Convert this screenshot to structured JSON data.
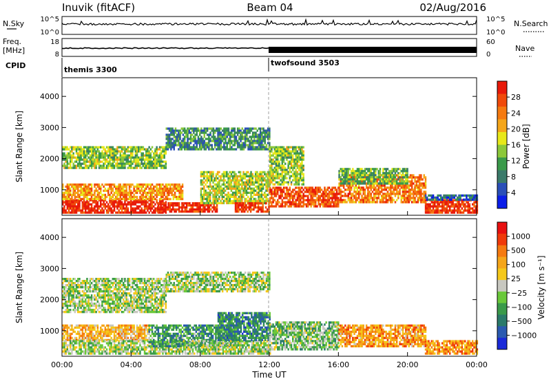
{
  "header": {
    "station": "Inuvik (fitACF)",
    "beam": "Beam 04",
    "date": "02/Aug/2016"
  },
  "panels": {
    "nsky": {
      "label": "N.Sky",
      "ticks": [
        "10^5",
        "10^0"
      ],
      "right_ticks": [
        "10^5",
        "10^0"
      ],
      "right_label": "N.Search"
    },
    "freq": {
      "label_line1": "Freq.",
      "label_line2": "[MHz]",
      "ticks": [
        "18",
        "8"
      ],
      "right_ticks": [
        "60",
        "0"
      ],
      "right_label": "Nave"
    },
    "cpid": {
      "label": "CPID",
      "segments": [
        {
          "name": "themis 3300",
          "start_hour": 0
        },
        {
          "name": "twofsound 3503",
          "start_hour": 12
        }
      ]
    }
  },
  "chart_data": [
    {
      "type": "heatmap",
      "quantity": "Power",
      "ylabel": "Slant Range [km]",
      "ylim": [
        180,
        4600
      ],
      "yticks": [
        "1000",
        "2000",
        "3000",
        "4000"
      ],
      "xlim_hours": [
        0,
        24
      ],
      "colorbar": {
        "label": "Power [dB]",
        "ticks": [
          "4",
          "8",
          "12",
          "16",
          "20",
          "24",
          "28"
        ],
        "colors": [
          "#0b1ee8",
          "#2a4fb8",
          "#3a7a6a",
          "#3a9a4a",
          "#8cc83a",
          "#e8e81a",
          "#f5a61a",
          "#f57a10",
          "#f04a0a",
          "#e81a0a"
        ]
      },
      "bands": [
        {
          "x_start": 0,
          "x_end": 6,
          "y_min": 300,
          "y_max": 700,
          "level": 0.95
        },
        {
          "x_start": 0,
          "x_end": 7,
          "y_min": 700,
          "y_max": 1200,
          "level": 0.7
        },
        {
          "x_start": 0,
          "x_end": 6,
          "y_min": 1700,
          "y_max": 2400,
          "level": 0.45
        },
        {
          "x_start": 5.5,
          "x_end": 9,
          "y_min": 300,
          "y_max": 600,
          "level": 0.95
        },
        {
          "x_start": 6,
          "x_end": 12,
          "y_min": 2300,
          "y_max": 3000,
          "level": 0.3
        },
        {
          "x_start": 8,
          "x_end": 12,
          "y_min": 600,
          "y_max": 1600,
          "level": 0.5
        },
        {
          "x_start": 10,
          "x_end": 12,
          "y_min": 300,
          "y_max": 600,
          "level": 0.9
        },
        {
          "x_start": 12,
          "x_end": 16,
          "y_min": 500,
          "y_max": 1100,
          "level": 0.85
        },
        {
          "x_start": 12,
          "x_end": 14,
          "y_min": 1200,
          "y_max": 2400,
          "level": 0.45
        },
        {
          "x_start": 16,
          "x_end": 21,
          "y_min": 600,
          "y_max": 1500,
          "level": 0.75
        },
        {
          "x_start": 16,
          "x_end": 20,
          "y_min": 1200,
          "y_max": 1700,
          "level": 0.4
        },
        {
          "x_start": 21,
          "x_end": 24,
          "y_min": 300,
          "y_max": 700,
          "level": 0.92
        },
        {
          "x_start": 21,
          "x_end": 24,
          "y_min": 700,
          "y_max": 850,
          "level": 0.2
        }
      ]
    },
    {
      "type": "heatmap",
      "quantity": "Velocity",
      "ylabel": "Slant Range [km]",
      "ylim": [
        180,
        4600
      ],
      "yticks": [
        "1000",
        "2000",
        "3000",
        "4000"
      ],
      "xlim_hours": [
        0,
        24
      ],
      "xticks": [
        "00:00",
        "04:00",
        "08:00",
        "12:00",
        "16:00",
        "20:00",
        "00:00"
      ],
      "xlabel": "Time UT",
      "colorbar": {
        "label": "Velocity [m s⁻¹]",
        "ticks": [
          "1000",
          "500",
          "100",
          "25",
          "−25",
          "−100",
          "−500",
          "−1000"
        ],
        "colors": [
          "#1a2ad8",
          "#2a5ab0",
          "#2a7a6a",
          "#3a9a4a",
          "#6ac83a",
          "#c8c8c0",
          "#f5c81a",
          "#f5a61a",
          "#f57a10",
          "#f03a0a",
          "#e81010"
        ]
      },
      "bands": [
        {
          "x_start": 0,
          "x_end": 6,
          "y_min": 1600,
          "y_max": 2700,
          "level": 0.45
        },
        {
          "x_start": 6,
          "x_end": 12,
          "y_min": 2300,
          "y_max": 2900,
          "level": 0.45
        },
        {
          "x_start": 0,
          "x_end": 5,
          "y_min": 700,
          "y_max": 1200,
          "level": 0.65
        },
        {
          "x_start": 0,
          "x_end": 7,
          "y_min": 300,
          "y_max": 700,
          "level": 0.45
        },
        {
          "x_start": 5,
          "x_end": 10,
          "y_min": 500,
          "y_max": 1200,
          "level": 0.3
        },
        {
          "x_start": 7,
          "x_end": 12,
          "y_min": 300,
          "y_max": 700,
          "level": 0.45
        },
        {
          "x_start": 9,
          "x_end": 12,
          "y_min": 700,
          "y_max": 1600,
          "level": 0.25
        },
        {
          "x_start": 12,
          "x_end": 16,
          "y_min": 400,
          "y_max": 1300,
          "level": 0.4
        },
        {
          "x_start": 16,
          "x_end": 21,
          "y_min": 500,
          "y_max": 1200,
          "level": 0.7
        },
        {
          "x_start": 21,
          "x_end": 24,
          "y_min": 300,
          "y_max": 700,
          "level": 0.72
        }
      ]
    }
  ]
}
